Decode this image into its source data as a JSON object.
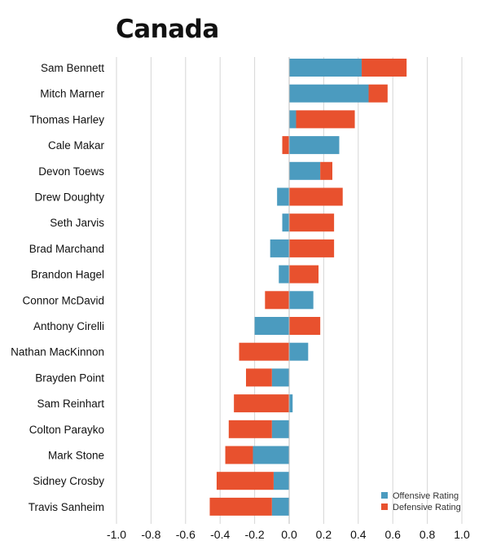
{
  "chart_data": {
    "type": "bar",
    "orientation": "horizontal",
    "stacking": "diverging",
    "title": "Canada",
    "xlim": [
      -1.0,
      1.0
    ],
    "xticks": [
      -1.0,
      -0.8,
      -0.6,
      -0.4,
      -0.2,
      0.0,
      0.2,
      0.4,
      0.6,
      0.8,
      1.0
    ],
    "xtick_labels": [
      "-1.0",
      "-0.8",
      "-0.6",
      "-0.4",
      "-0.2",
      "0.0",
      "0.2",
      "0.4",
      "0.6",
      "0.8",
      "1.0"
    ],
    "grid": true,
    "legend_position": "bottom-right",
    "categories": [
      "Sam Bennett",
      "Mitch Marner",
      "Thomas Harley",
      "Cale Makar",
      "Devon Toews",
      "Drew Doughty",
      "Seth Jarvis",
      "Brad Marchand",
      "Brandon Hagel",
      "Connor McDavid",
      "Anthony Cirelli",
      "Nathan MacKinnon",
      "Brayden Point",
      "Sam Reinhart",
      "Colton Parayko",
      "Mark Stone",
      "Sidney Crosby",
      "Travis Sanheim"
    ],
    "series": [
      {
        "name": "Offensive Rating",
        "color": "#4b9bbf",
        "values": [
          0.42,
          0.46,
          0.04,
          0.29,
          0.18,
          -0.07,
          -0.04,
          -0.11,
          -0.06,
          0.14,
          -0.2,
          0.11,
          -0.1,
          0.02,
          -0.1,
          -0.21,
          -0.09,
          -0.1
        ]
      },
      {
        "name": "Defensive Rating",
        "color": "#e8512e",
        "values": [
          0.26,
          0.11,
          0.34,
          -0.04,
          0.07,
          0.31,
          0.26,
          0.26,
          0.17,
          -0.14,
          0.18,
          -0.29,
          -0.15,
          -0.32,
          -0.25,
          -0.16,
          -0.33,
          -0.36
        ]
      }
    ]
  }
}
